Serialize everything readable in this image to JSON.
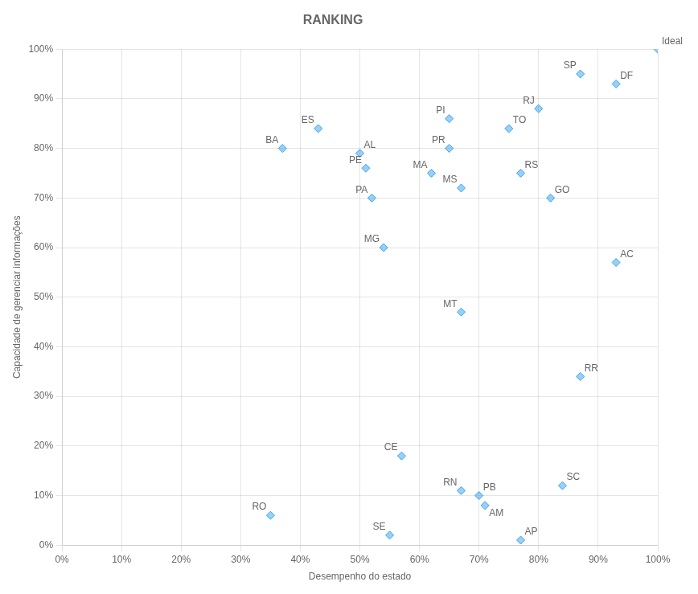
{
  "chart_data": {
    "type": "scatter",
    "title": "RANKING",
    "xlabel": "Desempenho do estado",
    "ylabel": "Capacidade de gerenciar informações",
    "marker": "diamond",
    "x": [
      1.0,
      0.87,
      0.93,
      0.8,
      0.65,
      0.75,
      0.37,
      0.43,
      0.5,
      0.65,
      0.51,
      0.62,
      0.52,
      0.67,
      0.77,
      0.82,
      0.54,
      0.93,
      0.67,
      0.87,
      0.57,
      0.67,
      0.7,
      0.71,
      0.84,
      0.35,
      0.55,
      0.77
    ],
    "values": [
      1.0,
      0.95,
      0.93,
      0.88,
      0.86,
      0.84,
      0.8,
      0.84,
      0.79,
      0.8,
      0.76,
      0.75,
      0.7,
      0.72,
      0.75,
      0.7,
      0.6,
      0.57,
      0.47,
      0.34,
      0.18,
      0.11,
      0.1,
      0.08,
      0.12,
      0.06,
      0.02,
      0.01
    ],
    "point_labels": [
      "Ideal",
      "SP",
      "DF",
      "RJ",
      "PI",
      "TO",
      "BA",
      "ES",
      "AL",
      "PR",
      "PE",
      "MA",
      "PA",
      "MS",
      "RS",
      "GO",
      "MG",
      "AC",
      "MT",
      "RR",
      "CE",
      "RN",
      "PB",
      "AM",
      "SC",
      "RO",
      "SE",
      "AP"
    ],
    "xlim": [
      0,
      1
    ],
    "ylim": [
      0,
      1
    ],
    "xticks": [
      {
        "value": 0.0,
        "label": "0%"
      },
      {
        "value": 0.1,
        "label": "10%"
      },
      {
        "value": 0.2,
        "label": "20%"
      },
      {
        "value": 0.3,
        "label": "30%"
      },
      {
        "value": 0.4,
        "label": "40%"
      },
      {
        "value": 0.5,
        "label": "50%"
      },
      {
        "value": 0.6,
        "label": "60%"
      },
      {
        "value": 0.7,
        "label": "70%"
      },
      {
        "value": 0.8,
        "label": "80%"
      },
      {
        "value": 0.9,
        "label": "90%"
      },
      {
        "value": 1.0,
        "label": "100%"
      }
    ],
    "yticks": [
      {
        "value": 0.0,
        "label": "0%"
      },
      {
        "value": 0.1,
        "label": "10%"
      },
      {
        "value": 0.2,
        "label": "20%"
      },
      {
        "value": 0.3,
        "label": "30%"
      },
      {
        "value": 0.4,
        "label": "40%"
      },
      {
        "value": 0.5,
        "label": "50%"
      },
      {
        "value": 0.6,
        "label": "60%"
      },
      {
        "value": 0.7,
        "label": "70%"
      },
      {
        "value": 0.8,
        "label": "80%"
      },
      {
        "value": 0.9,
        "label": "90%"
      },
      {
        "value": 1.0,
        "label": "100%"
      }
    ],
    "grid": true
  }
}
